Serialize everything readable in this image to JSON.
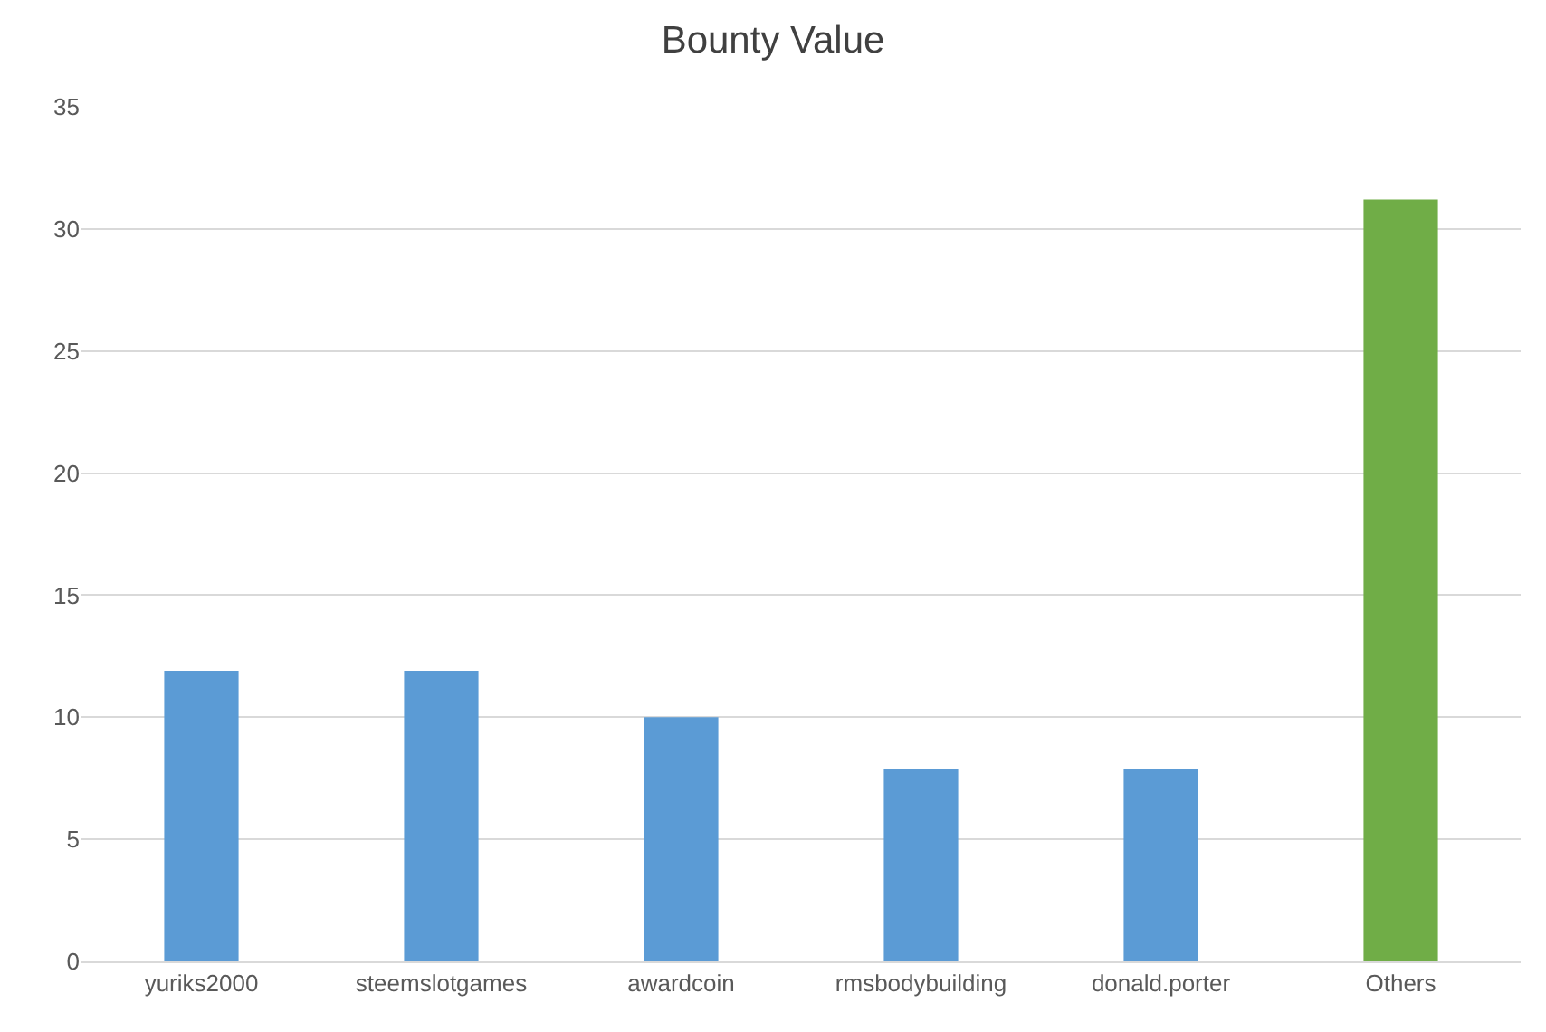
{
  "chart_data": {
    "type": "bar",
    "title": "Bounty Value",
    "categories": [
      "yuriks2000",
      "steemslotgames",
      "awardcoin",
      "rmsbodybuilding",
      "donald.porter",
      "Others"
    ],
    "values": [
      11.9,
      11.9,
      10,
      7.9,
      7.9,
      31.2
    ],
    "colors": [
      "#5b9bd5",
      "#5b9bd5",
      "#5b9bd5",
      "#5b9bd5",
      "#5b9bd5",
      "#70ad47"
    ],
    "ylim": [
      0,
      35
    ],
    "yticks": [
      0,
      5,
      10,
      15,
      20,
      25,
      30,
      35
    ],
    "grid": "y"
  }
}
